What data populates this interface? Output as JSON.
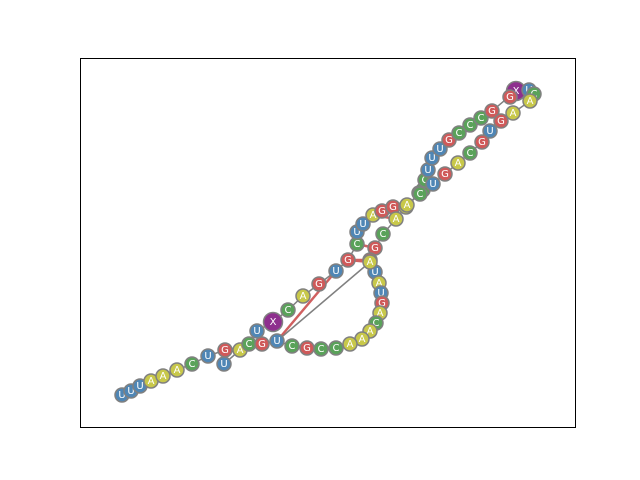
{
  "colors": {
    "A": "#c8c84a",
    "U": "#4f86b5",
    "G": "#cf5a5a",
    "C": "#5aa25a",
    "X": "#8e2f8e",
    "frame": "#000000",
    "backbone": "#808080",
    "pair": "#d06060"
  },
  "nucleotides": [
    {
      "label": "U"
    },
    {
      "label": "U"
    },
    {
      "label": "U"
    },
    {
      "label": "A"
    },
    {
      "label": "A"
    },
    {
      "label": "A"
    },
    {
      "label": "C"
    },
    {
      "label": "U"
    },
    {
      "label": "G"
    },
    {
      "label": "U"
    },
    {
      "label": "A"
    },
    {
      "label": "C"
    },
    {
      "label": "G"
    },
    {
      "label": "U"
    },
    {
      "label": "X"
    },
    {
      "label": "C"
    },
    {
      "label": "A"
    },
    {
      "label": "G"
    },
    {
      "label": "U"
    },
    {
      "label": "G"
    },
    {
      "label": "C"
    },
    {
      "label": "U"
    },
    {
      "label": "U"
    },
    {
      "label": "A"
    },
    {
      "label": "G"
    },
    {
      "label": "G"
    },
    {
      "label": "A"
    },
    {
      "label": "A"
    },
    {
      "label": "C"
    },
    {
      "label": "C"
    },
    {
      "label": "U"
    },
    {
      "label": "U"
    },
    {
      "label": "U"
    },
    {
      "label": "G"
    },
    {
      "label": "C"
    },
    {
      "label": "C"
    },
    {
      "label": "C"
    },
    {
      "label": "G"
    },
    {
      "label": "X"
    },
    {
      "label": "G"
    },
    {
      "label": "U"
    },
    {
      "label": "C"
    },
    {
      "label": "A"
    },
    {
      "label": "A"
    },
    {
      "label": "G"
    },
    {
      "label": "U"
    },
    {
      "label": "G"
    },
    {
      "label": "C"
    },
    {
      "label": "A"
    },
    {
      "label": "G"
    },
    {
      "label": "U"
    },
    {
      "label": "C"
    },
    {
      "label": "A"
    },
    {
      "label": "A"
    },
    {
      "label": "C"
    },
    {
      "label": "G"
    },
    {
      "label": "G"
    },
    {
      "label": "U"
    },
    {
      "label": "A"
    },
    {
      "label": "U"
    },
    {
      "label": "G"
    },
    {
      "label": "A"
    },
    {
      "label": "C"
    },
    {
      "label": "A"
    },
    {
      "label": "A"
    },
    {
      "label": "A"
    },
    {
      "label": "C"
    },
    {
      "label": "C"
    },
    {
      "label": "G"
    },
    {
      "label": "C"
    },
    {
      "label": "U"
    },
    {
      "label": "A"
    }
  ]
}
